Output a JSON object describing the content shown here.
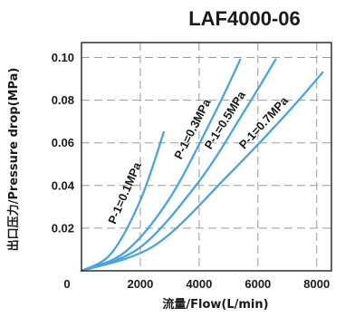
{
  "chart_data": {
    "type": "line",
    "title": "LAF4000-06",
    "xlabel": "流量/Flow(L/min)",
    "ylabel": "出口压力/Pressure drop(MPa)",
    "xlim": [
      0,
      8500
    ],
    "ylim": [
      0,
      0.107
    ],
    "x_ticks": [
      "0",
      "2000",
      "4000",
      "6000",
      "8000"
    ],
    "x_tick_values": [
      0,
      2000,
      4000,
      6000,
      8000
    ],
    "y_ticks": [
      "0.02",
      "0.04",
      "0.06",
      "0.08",
      "0.10"
    ],
    "y_tick_values": [
      0.02,
      0.04,
      0.06,
      0.08,
      0.1
    ],
    "grid": true,
    "line_color": "#4aa3df",
    "series": [
      {
        "name": "P-1=0.1MPa",
        "x": [
          0,
          1000,
          2000,
          2800
        ],
        "y": [
          0,
          0.008,
          0.033,
          0.065
        ]
      },
      {
        "name": "P-1=0.3MPa",
        "x": [
          0,
          1500,
          3000,
          4500,
          5400
        ],
        "y": [
          0,
          0.009,
          0.034,
          0.073,
          0.099
        ]
      },
      {
        "name": "P-1=0.5MPa",
        "x": [
          0,
          2000,
          4000,
          5500,
          6600
        ],
        "y": [
          0,
          0.011,
          0.042,
          0.074,
          0.099
        ]
      },
      {
        "name": "P-1=0.7MPa",
        "x": [
          0,
          2500,
          5000,
          7000,
          8200
        ],
        "y": [
          0,
          0.012,
          0.045,
          0.074,
          0.093
        ]
      }
    ]
  }
}
